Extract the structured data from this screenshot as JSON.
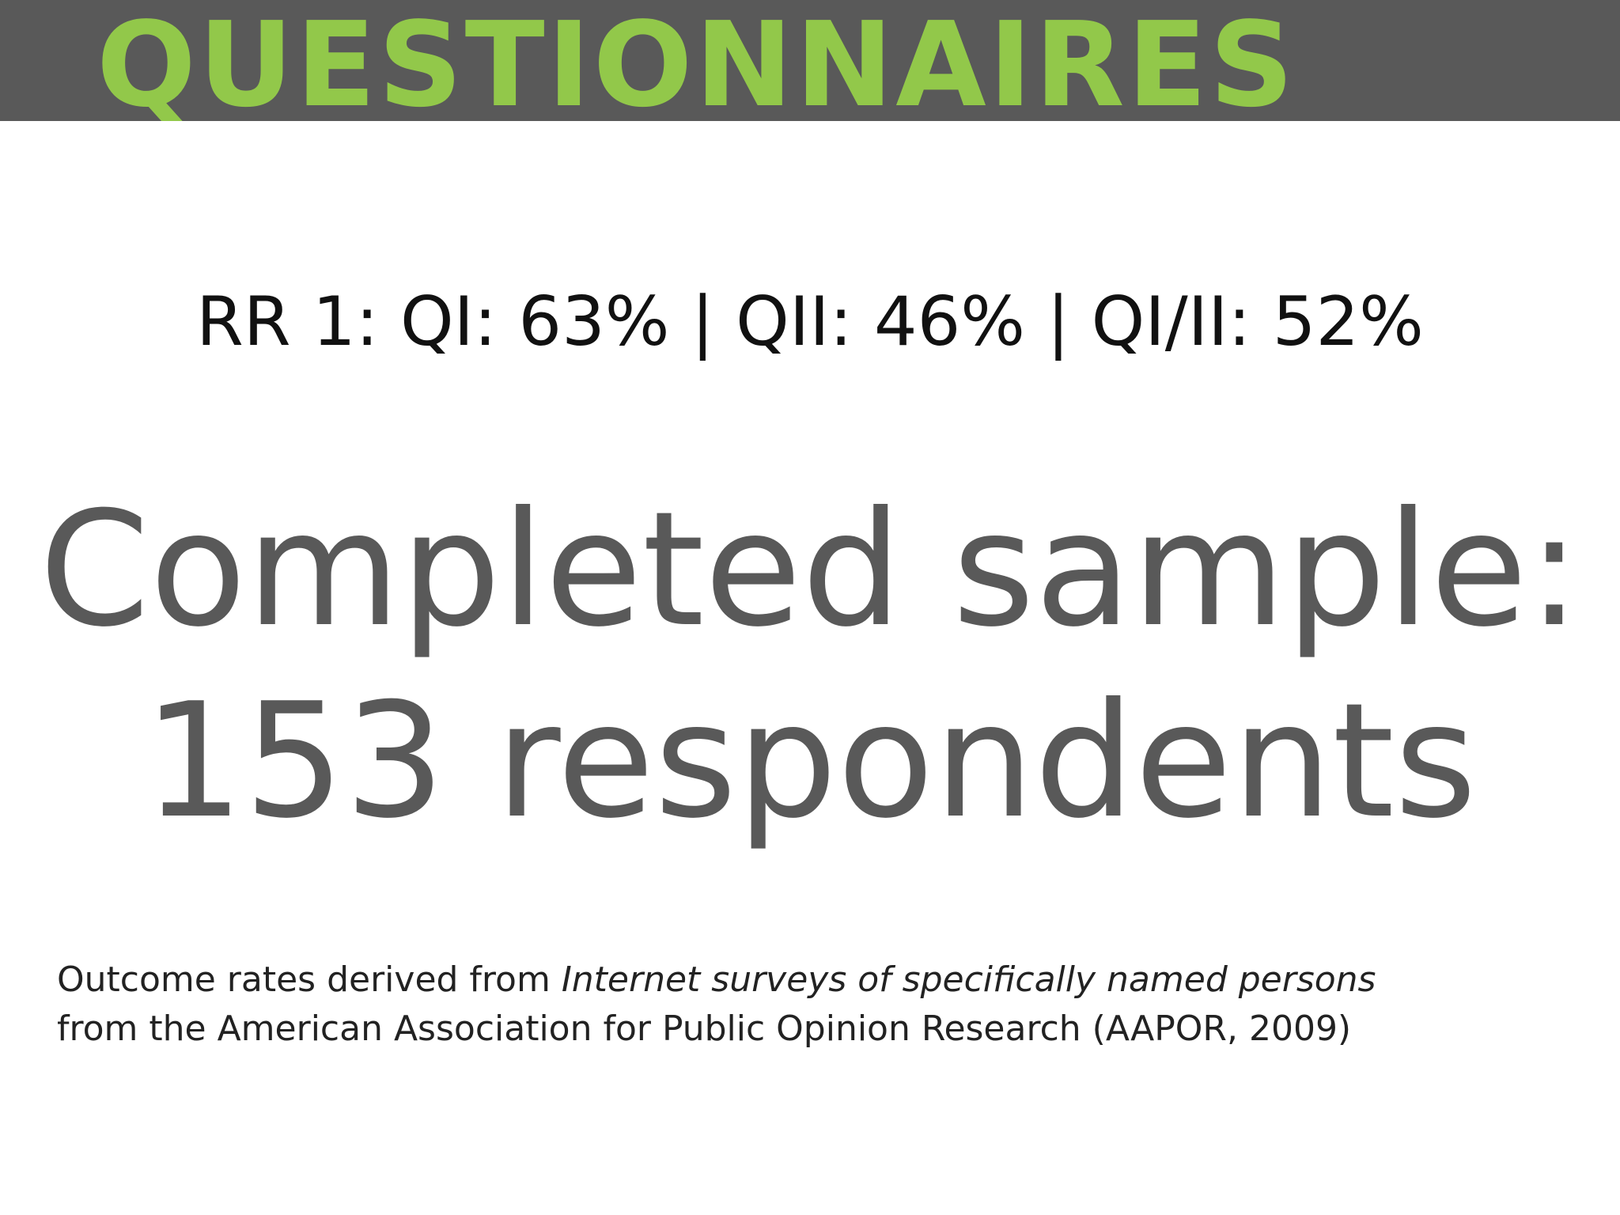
{
  "slide": {
    "title": "QUESTIONNAIRES",
    "rates_line": "RR 1: QI: 63% | QII: 46% | QI/II: 52%",
    "sample_line1": "Completed sample:",
    "sample_line2": "153 respondents",
    "source_prefix": "Outcome rates derived from ",
    "source_italic": "Internet surveys of specifically named persons",
    "source_line2": "from the American Association for Public Opinion Research (AAPOR, 2009)"
  },
  "colors": {
    "title_bar": "#595959",
    "title_text": "#92c84a",
    "body_text_dark": "#111111",
    "body_text_gray": "#595959"
  }
}
